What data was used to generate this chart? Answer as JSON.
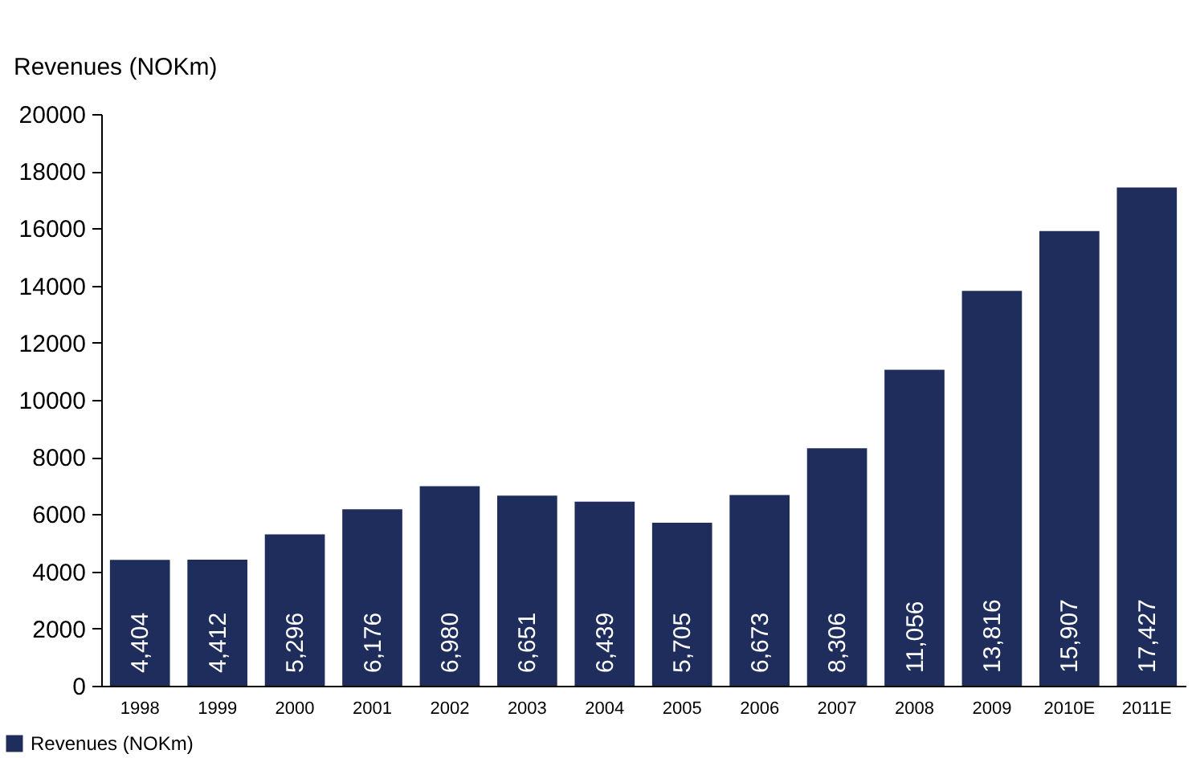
{
  "chart_data": {
    "type": "bar",
    "ylabel": "Revenues (NOKm)",
    "categories": [
      "1998",
      "1999",
      "2000",
      "2001",
      "2002",
      "2003",
      "2004",
      "2005",
      "2006",
      "2007",
      "2008",
      "2009",
      "2010E",
      "2011E"
    ],
    "series": [
      {
        "name": "Revenues (NOKm)",
        "color": "#1f2d5c",
        "values": [
          4404,
          4412,
          5296,
          6176,
          6980,
          6651,
          6439,
          5705,
          6673,
          8306,
          11056,
          13816,
          15907,
          17427
        ]
      }
    ],
    "value_labels": [
      "4,404",
      "4,412",
      "5,296",
      "6,176",
      "6,980",
      "6,651",
      "6,439",
      "5,705",
      "6,673",
      "8,306",
      "11,056",
      "13,816",
      "15,907",
      "17,427"
    ],
    "ylim": [
      0,
      20000
    ],
    "yticks": [
      0,
      2000,
      4000,
      6000,
      8000,
      10000,
      12000,
      14000,
      16000,
      18000,
      20000
    ],
    "grid": false,
    "legend": "bottom left"
  }
}
